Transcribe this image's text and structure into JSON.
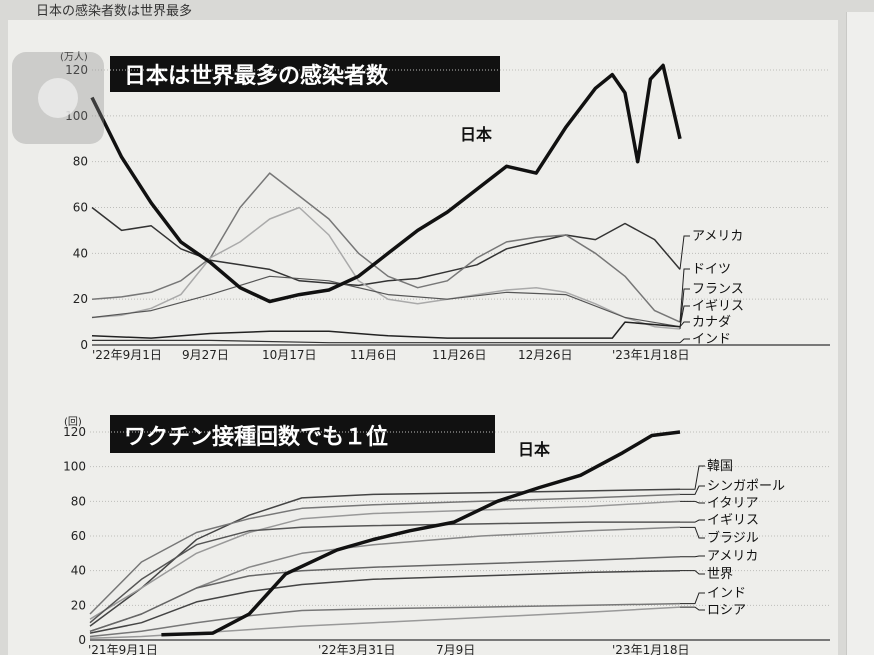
{
  "page_caption": "日本の感染者数は世界最多",
  "chart_data": [
    {
      "type": "line",
      "title": "日本は世界最多の感染者数",
      "y_unit": "(万人)",
      "ylim": [
        0,
        120
      ],
      "y_ticks": [
        "0",
        "20",
        "40",
        "60",
        "80",
        "100",
        "120"
      ],
      "x_tick_labels": [
        "'22年9月1日",
        "9月27日",
        "10月17日",
        "11月6日",
        "11月26日",
        "12月26日",
        "'23年1月18日"
      ],
      "x_range": [
        "2022-09-01",
        "2023-01-18"
      ],
      "grid": true,
      "series": [
        {
          "name": "日本",
          "color": "#111111",
          "width": 3.5,
          "x": [
            "2022-09-01",
            "2022-09-08",
            "2022-09-15",
            "2022-09-22",
            "2022-09-29",
            "2022-10-06",
            "2022-10-13",
            "2022-10-20",
            "2022-10-27",
            "2022-11-03",
            "2022-11-10",
            "2022-11-17",
            "2022-11-24",
            "2022-12-01",
            "2022-12-08",
            "2022-12-15",
            "2022-12-22",
            "2022-12-29",
            "2023-01-02",
            "2023-01-05",
            "2023-01-08",
            "2023-01-11",
            "2023-01-14",
            "2023-01-18"
          ],
          "y": [
            108,
            82,
            62,
            45,
            36,
            25,
            19,
            22,
            24,
            30,
            40,
            50,
            58,
            68,
            78,
            75,
            95,
            112,
            118,
            110,
            80,
            116,
            122,
            90
          ]
        },
        {
          "name": "アメリカ",
          "color": "#333333",
          "width": 1.5,
          "x": [
            "2022-09-01",
            "2022-09-08",
            "2022-09-15",
            "2022-09-22",
            "2022-09-29",
            "2022-10-06",
            "2022-10-13",
            "2022-10-20",
            "2022-10-27",
            "2022-11-03",
            "2022-11-10",
            "2022-11-17",
            "2022-11-24",
            "2022-12-01",
            "2022-12-08",
            "2022-12-15",
            "2022-12-22",
            "2022-12-29",
            "2023-01-05",
            "2023-01-12",
            "2023-01-18"
          ],
          "y": [
            60,
            50,
            52,
            42,
            37,
            35,
            33,
            28,
            27,
            26,
            28,
            29,
            32,
            35,
            42,
            45,
            48,
            46,
            53,
            46,
            33
          ]
        },
        {
          "name": "ドイツ",
          "color": "#777777",
          "width": 1.5,
          "x": [
            "2022-09-01",
            "2022-09-08",
            "2022-09-15",
            "2022-09-22",
            "2022-09-29",
            "2022-10-06",
            "2022-10-13",
            "2022-10-20",
            "2022-10-27",
            "2022-11-03",
            "2022-11-10",
            "2022-11-17",
            "2022-11-24",
            "2022-12-01",
            "2022-12-08",
            "2022-12-15",
            "2022-12-22",
            "2022-12-29",
            "2023-01-05",
            "2023-01-12",
            "2023-01-18"
          ],
          "y": [
            20,
            21,
            23,
            28,
            38,
            60,
            75,
            65,
            55,
            40,
            30,
            25,
            28,
            38,
            45,
            47,
            48,
            40,
            30,
            15,
            10
          ]
        },
        {
          "name": "フランス",
          "color": "#aaaaaa",
          "width": 1.5,
          "x": [
            "2022-09-01",
            "2022-09-08",
            "2022-09-15",
            "2022-09-22",
            "2022-09-29",
            "2022-10-06",
            "2022-10-13",
            "2022-10-20",
            "2022-10-27",
            "2022-11-03",
            "2022-11-10",
            "2022-11-17",
            "2022-11-24",
            "2022-12-01",
            "2022-12-08",
            "2022-12-15",
            "2022-12-22",
            "2022-12-29",
            "2023-01-05",
            "2023-01-12",
            "2023-01-18"
          ],
          "y": [
            12,
            13,
            16,
            22,
            38,
            45,
            55,
            60,
            48,
            28,
            20,
            18,
            20,
            22,
            24,
            25,
            23,
            18,
            12,
            8,
            7
          ]
        },
        {
          "name": "イギリス",
          "color": "#555555",
          "width": 1.2,
          "x": [
            "2022-09-01",
            "2022-09-15",
            "2022-09-29",
            "2022-10-13",
            "2022-10-27",
            "2022-11-10",
            "2022-11-24",
            "2022-12-08",
            "2022-12-22",
            "2023-01-05",
            "2023-01-18"
          ],
          "y": [
            12,
            15,
            22,
            30,
            28,
            22,
            20,
            23,
            22,
            12,
            8
          ]
        },
        {
          "name": "カナダ",
          "color": "#222222",
          "width": 1.5,
          "x": [
            "2022-09-01",
            "2022-09-15",
            "2022-09-29",
            "2022-10-13",
            "2022-10-27",
            "2022-11-10",
            "2022-11-24",
            "2022-12-08",
            "2022-12-22",
            "2023-01-02",
            "2023-01-05",
            "2023-01-18"
          ],
          "y": [
            4,
            3,
            5,
            6,
            6,
            4,
            3,
            3,
            3,
            3,
            10,
            8
          ]
        },
        {
          "name": "インド",
          "color": "#333333",
          "width": 1.2,
          "x": [
            "2022-09-01",
            "2022-09-29",
            "2022-10-27",
            "2022-11-24",
            "2022-12-22",
            "2023-01-18"
          ],
          "y": [
            2,
            2,
            1,
            1,
            1,
            1
          ]
        }
      ]
    },
    {
      "type": "line",
      "title": "ワクチン接種回数でも１位",
      "y_unit": "(回)",
      "ylim": [
        0,
        120
      ],
      "y_ticks": [
        "0",
        "20",
        "40",
        "60",
        "80",
        "100",
        "120"
      ],
      "x_tick_labels": [
        "'21年9月1日",
        "'22年3月31日",
        "7月9日",
        "'23年1月18日"
      ],
      "x_range": [
        "2021-09-01",
        "2023-01-18"
      ],
      "grid": true,
      "series": [
        {
          "name": "日本",
          "color": "#111111",
          "width": 3.5,
          "x": [
            "2021-11-01",
            "2021-12-15",
            "2022-01-15",
            "2022-02-15",
            "2022-03-31",
            "2022-05-01",
            "2022-06-01",
            "2022-07-09",
            "2022-08-15",
            "2022-09-20",
            "2022-10-25",
            "2022-11-30",
            "2022-12-25",
            "2023-01-18"
          ],
          "y": [
            3,
            4,
            15,
            38,
            52,
            58,
            63,
            68,
            80,
            88,
            95,
            108,
            118,
            120
          ]
        },
        {
          "name": "韓国",
          "color": "#444444",
          "width": 1.5,
          "x": [
            "2021-09-01",
            "2021-10-15",
            "2021-12-01",
            "2022-01-15",
            "2022-03-01",
            "2022-05-01",
            "2022-08-01",
            "2022-11-01",
            "2023-01-18"
          ],
          "y": [
            8,
            30,
            58,
            72,
            82,
            84,
            85,
            86,
            87
          ]
        },
        {
          "name": "シンガポール",
          "color": "#777777",
          "width": 1.5,
          "x": [
            "2021-09-01",
            "2021-10-15",
            "2021-12-01",
            "2022-01-15",
            "2022-03-01",
            "2022-05-01",
            "2022-08-01",
            "2022-11-01",
            "2023-01-18"
          ],
          "y": [
            15,
            45,
            62,
            70,
            76,
            78,
            80,
            82,
            84
          ]
        },
        {
          "name": "イタリア",
          "color": "#999999",
          "width": 1.5,
          "x": [
            "2021-09-01",
            "2021-10-15",
            "2021-12-01",
            "2022-01-15",
            "2022-03-01",
            "2022-05-01",
            "2022-08-01",
            "2022-11-01",
            "2023-01-18"
          ],
          "y": [
            12,
            30,
            50,
            62,
            70,
            73,
            75,
            77,
            80
          ]
        },
        {
          "name": "イギリス",
          "color": "#555555",
          "width": 1.5,
          "x": [
            "2021-09-01",
            "2021-10-15",
            "2021-12-01",
            "2022-01-15",
            "2022-03-01",
            "2022-05-01",
            "2022-08-01",
            "2022-11-01",
            "2023-01-18"
          ],
          "y": [
            10,
            35,
            55,
            63,
            65,
            66,
            67,
            68,
            68
          ]
        },
        {
          "name": "ブラジル",
          "color": "#888888",
          "width": 1.5,
          "x": [
            "2021-09-01",
            "2021-10-15",
            "2021-12-01",
            "2022-01-15",
            "2022-03-01",
            "2022-05-01",
            "2022-08-01",
            "2022-11-01",
            "2023-01-18"
          ],
          "y": [
            5,
            15,
            30,
            42,
            50,
            55,
            60,
            63,
            65
          ]
        },
        {
          "name": "アメリカ",
          "color": "#666666",
          "width": 1.5,
          "x": [
            "2021-09-01",
            "2021-10-15",
            "2021-12-01",
            "2022-01-15",
            "2022-03-01",
            "2022-05-01",
            "2022-08-01",
            "2022-11-01",
            "2023-01-18"
          ],
          "y": [
            5,
            15,
            30,
            37,
            40,
            42,
            44,
            46,
            48
          ]
        },
        {
          "name": "世界",
          "color": "#444444",
          "width": 1.5,
          "x": [
            "2021-09-01",
            "2021-10-15",
            "2021-12-01",
            "2022-01-15",
            "2022-03-01",
            "2022-05-01",
            "2022-08-01",
            "2022-11-01",
            "2023-01-18"
          ],
          "y": [
            4,
            10,
            22,
            28,
            32,
            35,
            37,
            39,
            40
          ]
        },
        {
          "name": "インド",
          "color": "#777777",
          "width": 1.5,
          "x": [
            "2021-09-01",
            "2021-10-15",
            "2021-12-01",
            "2022-01-15",
            "2022-03-01",
            "2022-05-01",
            "2022-08-01",
            "2022-11-01",
            "2023-01-18"
          ],
          "y": [
            2,
            5,
            10,
            14,
            17,
            18,
            19,
            20,
            21
          ]
        },
        {
          "name": "ロシア",
          "color": "#999999",
          "width": 1.5,
          "x": [
            "2021-09-01",
            "2021-10-15",
            "2021-12-01",
            "2022-01-15",
            "2022-03-01",
            "2022-05-01",
            "2022-08-01",
            "2022-11-01",
            "2023-01-18"
          ],
          "y": [
            1,
            2,
            4,
            6,
            8,
            10,
            13,
            16,
            19
          ]
        }
      ]
    }
  ]
}
